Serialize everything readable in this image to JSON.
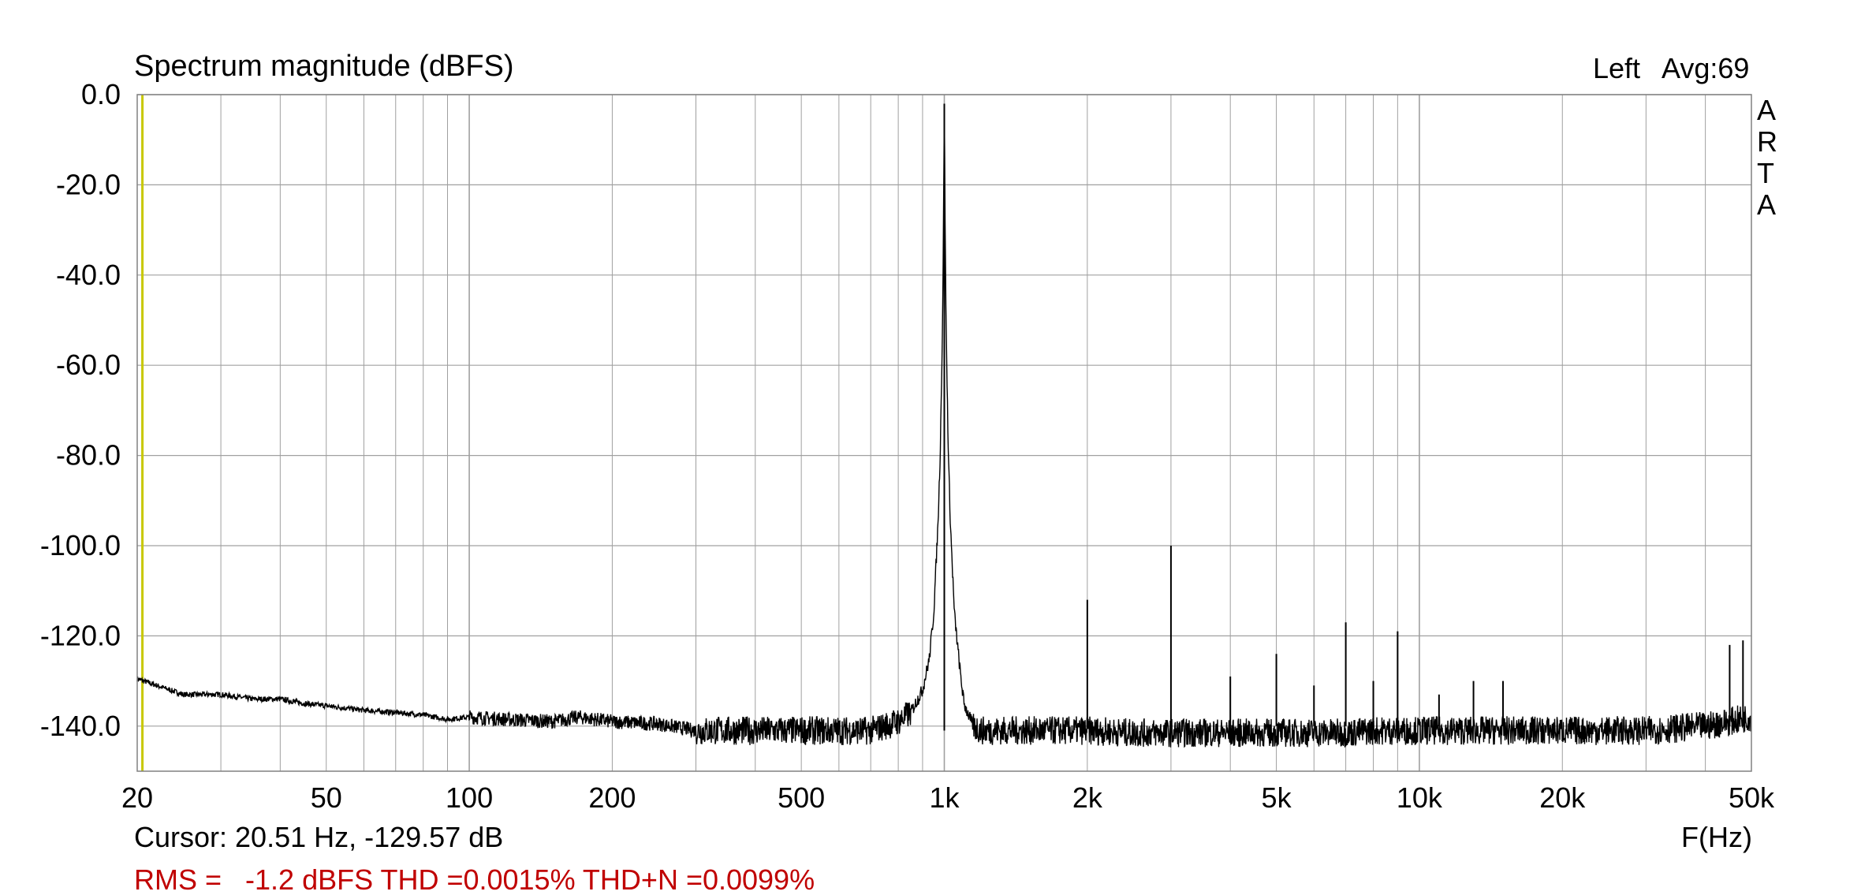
{
  "header": {
    "title": "Spectrum magnitude (dBFS)",
    "channel": "Left",
    "avg": "Avg:69",
    "brand_letters": [
      "A",
      "R",
      "T",
      "A"
    ]
  },
  "footer": {
    "cursor": "Cursor: 20.51 Hz, -129.57 dB",
    "xunit": "F(Hz)",
    "stats": "RMS =   -1.2 dBFS THD =0.0015% THD+N =0.0099%"
  },
  "colors": {
    "trace": "#000000",
    "grid": "#a0a0a0",
    "frame": "#808080",
    "cursor_line": "#c8c800",
    "stats_text": "#c00000"
  },
  "chart_data": {
    "type": "line",
    "title": "Spectrum magnitude (dBFS)",
    "xlabel": "F(Hz)",
    "ylabel": "",
    "xscale": "log",
    "xlim": [
      20,
      50000
    ],
    "ylim": [
      -150,
      0
    ],
    "grid": true,
    "x_ticks": [
      {
        "value": 20,
        "label": "20"
      },
      {
        "value": 50,
        "label": "50"
      },
      {
        "value": 100,
        "label": "100"
      },
      {
        "value": 200,
        "label": "200"
      },
      {
        "value": 500,
        "label": "500"
      },
      {
        "value": 1000,
        "label": "1k"
      },
      {
        "value": 2000,
        "label": "2k"
      },
      {
        "value": 5000,
        "label": "5k"
      },
      {
        "value": 10000,
        "label": "10k"
      },
      {
        "value": 20000,
        "label": "20k"
      },
      {
        "value": 50000,
        "label": "50k"
      }
    ],
    "y_ticks": [
      {
        "value": 0,
        "label": "0.0"
      },
      {
        "value": -20,
        "label": "-20.0"
      },
      {
        "value": -40,
        "label": "-40.0"
      },
      {
        "value": -60,
        "label": "-60.0"
      },
      {
        "value": -80,
        "label": "-80.0"
      },
      {
        "value": -100,
        "label": "-100.0"
      },
      {
        "value": -120,
        "label": "-120.0"
      },
      {
        "value": -140,
        "label": "-140.0"
      }
    ],
    "cursor": {
      "x": 20.51,
      "y": -129.57
    },
    "series": [
      {
        "values_note": "",
        "x": [
          20,
          22,
          25,
          30,
          35,
          40,
          45,
          50,
          60,
          70,
          80,
          90,
          100,
          120,
          150,
          170,
          200,
          250,
          300,
          400,
          500,
          600,
          700,
          800,
          850,
          900,
          930,
          950,
          970,
          980,
          990,
          995,
          1000,
          1005,
          1010,
          1020,
          1030,
          1050,
          1080,
          1100,
          1150,
          1200,
          1500,
          2000,
          2500,
          3000,
          4000,
          5000,
          6000,
          7000,
          8000,
          9000,
          10000,
          12000,
          15000,
          20000,
          30000,
          40000,
          45000,
          50000
        ],
        "y": [
          -129.5,
          -131,
          -133,
          -133,
          -134,
          -134,
          -135,
          -135.5,
          -136.5,
          -137,
          -137.5,
          -138.5,
          -138,
          -138.5,
          -139,
          -138,
          -139,
          -139.5,
          -141,
          -141,
          -141,
          -141,
          -141,
          -139,
          -137,
          -132,
          -125,
          -115,
          -95,
          -80,
          -55,
          -35,
          -2,
          -35,
          -55,
          -80,
          -95,
          -115,
          -128,
          -135,
          -140,
          -141,
          -141,
          -141,
          -141.5,
          -141.5,
          -141.5,
          -141.5,
          -141.5,
          -141.5,
          -141,
          -141,
          -141,
          -141,
          -141,
          -141,
          -141,
          -140,
          -139,
          -138
        ]
      }
    ],
    "peaks": [
      {
        "x": 2000,
        "y": -112
      },
      {
        "x": 3000,
        "y": -100
      },
      {
        "x": 4000,
        "y": -129
      },
      {
        "x": 5000,
        "y": -124
      },
      {
        "x": 6000,
        "y": -131
      },
      {
        "x": 7000,
        "y": -117
      },
      {
        "x": 8000,
        "y": -130
      },
      {
        "x": 9000,
        "y": -119
      },
      {
        "x": 11000,
        "y": -133
      },
      {
        "x": 13000,
        "y": -130
      },
      {
        "x": 15000,
        "y": -130
      },
      {
        "x": 45000,
        "y": -122
      },
      {
        "x": 48000,
        "y": -121
      }
    ]
  }
}
